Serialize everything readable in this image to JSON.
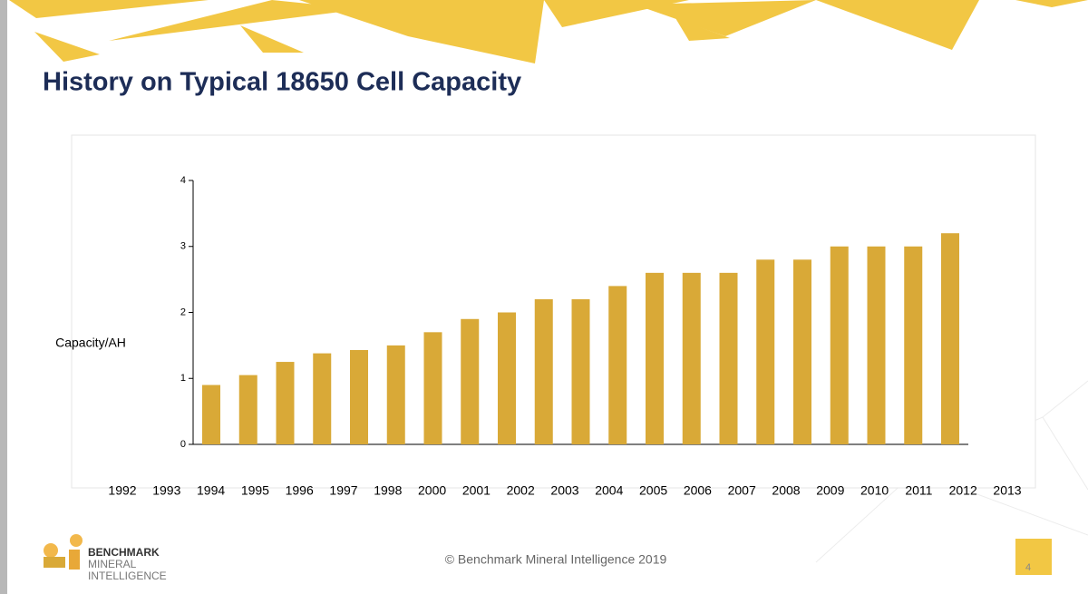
{
  "slide": {
    "title": "History on Typical 18650 Cell Capacity",
    "footer": "© Benchmark Mineral Intelligence 2019",
    "page_number": "4",
    "logo": [
      "BENCHMARK",
      "MINERAL",
      "INTELLIGENCE"
    ]
  },
  "chart_data": {
    "type": "bar",
    "y_label": "Capacity/AH",
    "categories": [
      "1992",
      "1993",
      "1994",
      "1995",
      "1996",
      "1997",
      "1998",
      "2000",
      "2001",
      "2002",
      "2003",
      "2004",
      "2005",
      "2006",
      "2007",
      "2008",
      "2009",
      "2010",
      "2011",
      "2012",
      "2013"
    ],
    "values": [
      0.9,
      1.05,
      1.25,
      1.38,
      1.43,
      1.5,
      1.7,
      1.9,
      2.0,
      2.2,
      2.2,
      2.4,
      2.6,
      2.6,
      2.6,
      2.8,
      2.8,
      3.0,
      3.0,
      3.0,
      3.2
    ],
    "color": "#d9a937",
    "ylim": [
      0,
      4
    ],
    "yticks": [
      0,
      1,
      2,
      3,
      4
    ]
  }
}
